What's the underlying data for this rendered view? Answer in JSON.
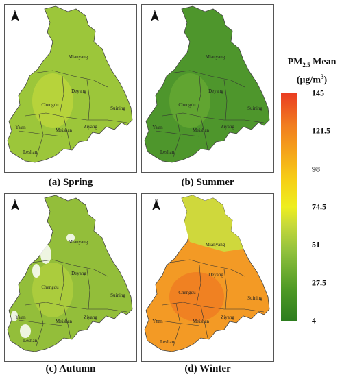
{
  "panels": [
    {
      "caption": "(a) Spring",
      "north": "N",
      "fill": "#9cc63a",
      "hot": "#c3d93c",
      "cities": [
        "Mianyang",
        "Deyang",
        "Chengdu",
        "Suining",
        "Ya'an",
        "Meishan",
        "Ziyang",
        "Leshan"
      ]
    },
    {
      "caption": "(b) Summer",
      "north": "N",
      "fill": "#4e962c",
      "hot": "#6aab33",
      "cities": [
        "Mianyang",
        "Deyang",
        "Chengdu",
        "Suining",
        "Ya'an",
        "Meishan",
        "Ziyang",
        "Leshan"
      ]
    },
    {
      "caption": "(c) Autumn",
      "north": "N",
      "fill": "#93be3a",
      "hot": "#b5d23e",
      "cities": [
        "Mianyang",
        "Deyang",
        "Chengdu",
        "Suining",
        "Ya'an",
        "Meishan",
        "Ziyang",
        "Leshan"
      ]
    },
    {
      "caption": "(d) Winter",
      "north": "N",
      "fill": "#f39a25",
      "hot": "#ef7b22",
      "cities": [
        "Mianyang",
        "Deyang",
        "Chengdu",
        "Suining",
        "Ya'an",
        "Meishan",
        "Ziyang",
        "Leshan"
      ]
    }
  ],
  "legend": {
    "title_main": "PM",
    "title_sub": "2.5",
    "title_rest": " Mean",
    "unit_open": "(μg/m",
    "unit_sup": "3",
    "unit_close": ")",
    "ticks": [
      "145",
      "121.5",
      "98",
      "74.5",
      "51",
      "27.5",
      "4"
    ],
    "tick_values": [
      145,
      121.5,
      98,
      74.5,
      51,
      27.5,
      4
    ],
    "range": [
      4,
      145
    ]
  }
}
